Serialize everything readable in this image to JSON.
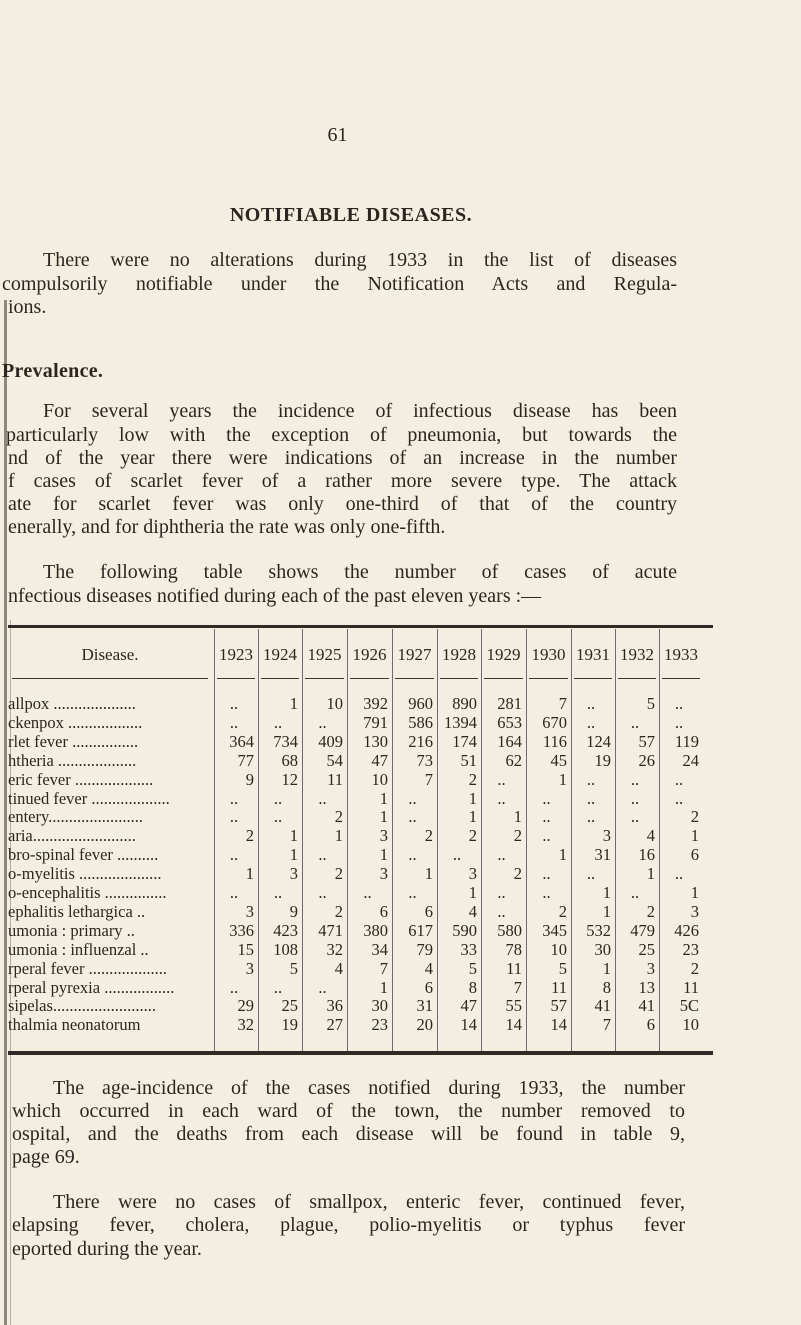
{
  "page_number": "61",
  "title": "NOTIFIABLE DISEASES.",
  "intro": [
    "There were no alterations during 1933 in the list of diseases",
    "compulsorily notifiable under the Notification Acts and Regula-",
    "ions."
  ],
  "prevalence_heading": "Prevalence.",
  "prevalence": [
    "For several years the incidence of infectious disease has been",
    "particularly low with the exception of pneumonia, but towards the",
    "nd of the year there were indications of an increase in the number",
    "f cases of scarlet fever of a rather more severe type.  The attack",
    "ate for scarlet fever was only one-third of that of the country",
    "enerally, and for diphtheria the rate was only one-fifth."
  ],
  "table_intro": [
    "The following table shows the number of cases of acute",
    "nfectious diseases notified during each of the past eleven years :—"
  ],
  "table": {
    "disease_header": "Disease.",
    "years": [
      "1923",
      "1924",
      "1925",
      "1926",
      "1927",
      "1928",
      "1929",
      "1930",
      "1931",
      "1932",
      "1933"
    ],
    "rows": [
      {
        "disease": "allpox ....................",
        "values": [
          "..",
          "1",
          "10",
          "392",
          "960",
          "890",
          "281",
          "7",
          "..",
          "5",
          ".."
        ]
      },
      {
        "disease": "ckenpox ..................",
        "values": [
          "..",
          "..",
          "..",
          "791",
          "586",
          "1394",
          "653",
          "670",
          "..",
          "..",
          ".."
        ]
      },
      {
        "disease": "rlet fever  ................",
        "values": [
          "364",
          "734",
          "409",
          "130",
          "216",
          "174",
          "164",
          "116",
          "124",
          "57",
          "119"
        ]
      },
      {
        "disease": "htheria  ...................",
        "values": [
          "77",
          "68",
          "54",
          "47",
          "73",
          "51",
          "62",
          "45",
          "19",
          "26",
          "24"
        ]
      },
      {
        "disease": "eric fever ...................",
        "values": [
          "9",
          "12",
          "11",
          "10",
          "7",
          "2",
          "..",
          "1",
          "..",
          "..",
          ".."
        ]
      },
      {
        "disease": "tinued fever ...................",
        "values": [
          "..",
          "..",
          "..",
          "1",
          "..",
          "1",
          "..",
          "..",
          "..",
          "..",
          ".."
        ]
      },
      {
        "disease": "entery.......................",
        "values": [
          "..",
          "..",
          "2",
          "1",
          "..",
          "1",
          "1",
          "..",
          "..",
          "..",
          "2"
        ]
      },
      {
        "disease": "aria.........................",
        "values": [
          "2",
          "1",
          "1",
          "3",
          "2",
          "2",
          "2",
          "..",
          "3",
          "4",
          "1"
        ]
      },
      {
        "disease": "bro-spinal fever  ..........",
        "values": [
          "..",
          "1",
          "..",
          "1",
          "..",
          "..",
          "..",
          "1",
          "31",
          "16",
          "6"
        ]
      },
      {
        "disease": "o-myelitis ....................",
        "values": [
          "1",
          "3",
          "2",
          "3",
          "1",
          "3",
          "2",
          "..",
          "..",
          "1",
          ".."
        ]
      },
      {
        "disease": "o-encephalitis  ...............",
        "values": [
          "..",
          "..",
          "..",
          "..",
          "..",
          "1",
          "..",
          "..",
          "1",
          "..",
          "1"
        ]
      },
      {
        "disease": "ephalitis lethargica ..",
        "values": [
          "3",
          "9",
          "2",
          "6",
          "6",
          "4",
          "..",
          "2",
          "1",
          "2",
          "3"
        ]
      },
      {
        "disease": "umonia :  primary   ..",
        "values": [
          "336",
          "423",
          "471",
          "380",
          "617",
          "590",
          "580",
          "345",
          "532",
          "479",
          "426"
        ]
      },
      {
        "disease": "umonia : influenzal ..",
        "values": [
          "15",
          "108",
          "32",
          "34",
          "79",
          "33",
          "78",
          "10",
          "30",
          "25",
          "23"
        ]
      },
      {
        "disease": "rperal fever  ...................",
        "values": [
          "3",
          "5",
          "4",
          "7",
          "4",
          "5",
          "11",
          "5",
          "1",
          "3",
          "2"
        ]
      },
      {
        "disease": "rperal pyrexia  .................",
        "values": [
          "..",
          "..",
          "..",
          "1",
          "6",
          "8",
          "7",
          "11",
          "8",
          "13",
          "11"
        ]
      },
      {
        "disease": "sipelas.........................",
        "values": [
          "29",
          "25",
          "36",
          "30",
          "31",
          "47",
          "55",
          "57",
          "41",
          "41",
          "5C"
        ]
      },
      {
        "disease": "thalmia neonatorum",
        "values": [
          "32",
          "19",
          "27",
          "23",
          "20",
          "14",
          "14",
          "14",
          "7",
          "6",
          "10"
        ]
      }
    ]
  },
  "closing_1": [
    "The age-incidence of the cases notified during 1933, the number",
    "which occurred in each ward of the town, the number removed to",
    "ospital, and the deaths from each disease will be found in table 9,",
    "page 69."
  ],
  "closing_2": [
    "There were no cases of smallpox, enteric fever, continued fever,",
    "elapsing fever, cholera, plague, polio-myelitis or typhus fever",
    "eported during the year."
  ]
}
